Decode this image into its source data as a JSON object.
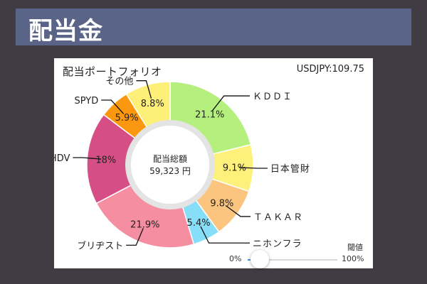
{
  "header": {
    "title": "配当金"
  },
  "card": {
    "title": "配当ポートフォリオ",
    "rate": "USDJPY:109.75"
  },
  "chart_data": {
    "type": "pie",
    "title": "配当ポートフォリオ",
    "center_label": "配当総額",
    "center_value": "59,323 円",
    "slices": [
      {
        "label": "ＫＤＤＩ",
        "value": 21.1,
        "text": "21.1%",
        "color": "#b5f07e"
      },
      {
        "label": "日本管財",
        "value": 9.1,
        "text": "9.1%",
        "color": "#fdf17b"
      },
      {
        "label": "ＴＡＫＡＲ",
        "value": 9.8,
        "text": "9.8%",
        "color": "#fcc57f"
      },
      {
        "label": "ニホンフラ",
        "value": 5.4,
        "text": "5.4%",
        "color": "#86def8"
      },
      {
        "label": "ブリヂスト",
        "value": 21.9,
        "text": "21.9%",
        "color": "#f58ea1"
      },
      {
        "label": "HDV",
        "value": 18.0,
        "text": "18%",
        "color": "#d54f86"
      },
      {
        "label": "SPYD",
        "value": 5.9,
        "text": "5.9%",
        "color": "#fb980f"
      },
      {
        "label": "その他",
        "value": 8.8,
        "text": "8.8%",
        "color": "#fdef78"
      }
    ]
  },
  "slider": {
    "label": "閾値",
    "min_label": "0%",
    "max_label": "100%",
    "value": 0.03
  }
}
